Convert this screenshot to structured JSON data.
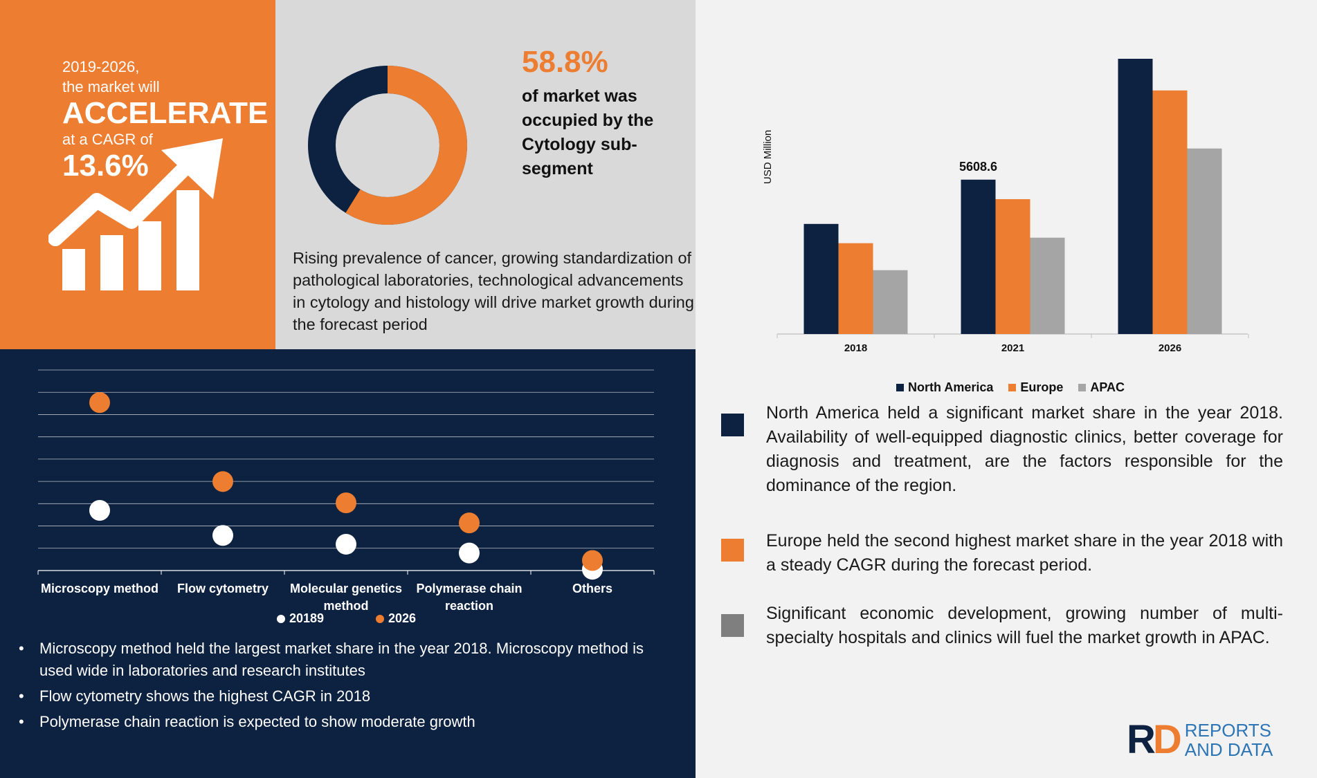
{
  "cagr": {
    "line1": "2019-2026,",
    "line2": "the market will",
    "headline": "ACCELERATE",
    "line3": "at a CAGR of",
    "value": "13.6%"
  },
  "donut": {
    "percent_label": "58.8%",
    "description": "of market was occupied by the Cytology sub-segment",
    "share": 0.588,
    "colors": {
      "segment": "#ed7d31",
      "rest": "#0d2240"
    }
  },
  "prevalence_text": "Rising prevalence of cancer, growing standardization of pathological laboratories, technological advancements in cytology and histology will drive market growth during the forecast period",
  "bullets": [
    "Microscopy method held the largest market share in the year 2018. Microscopy method is used wide in laboratories and research institutes",
    "Flow cytometry shows the highest CAGR in 2018",
    "Polymerase chain reaction is expected to show moderate growth"
  ],
  "regions": [
    {
      "color": "#0d2240",
      "text": "North America held a significant market share in the year 2018. Availability of well-equipped diagnostic clinics, better coverage for diagnosis and treatment, are the factors responsible for the dominance of the region."
    },
    {
      "color": "#ed7d31",
      "text": "Europe held the second highest market share in the year 2018 with a steady CAGR during the forecast period."
    },
    {
      "color": "#7f7f7f",
      "text": "Significant economic development, growing number of multi-specialty hospitals and clinics will fuel the market growth in APAC."
    }
  ],
  "logo": {
    "mark_r": "R",
    "mark_d": "D",
    "line1": "REPORTS",
    "line2": "AND DATA"
  },
  "colors": {
    "orange": "#ed7d31",
    "navy": "#0d2240",
    "grey": "#a5a5a5"
  },
  "chart_data": [
    {
      "type": "scatter",
      "title": "",
      "categories": [
        "Microscopy method",
        "Flow cytometry",
        "Molecular genetics method",
        "Polymerase chain reaction",
        "Others"
      ],
      "series": [
        {
          "name": "20189",
          "color": "#ffffff",
          "values": [
            2.4,
            1.4,
            1.05,
            0.7,
            0.05
          ]
        },
        {
          "name": "2026",
          "color": "#ed7d31",
          "values": [
            6.7,
            3.55,
            2.7,
            1.9,
            0.4
          ]
        }
      ],
      "ylim": [
        0,
        8
      ],
      "grid": true,
      "legend": "bottom"
    },
    {
      "type": "bar",
      "categories": [
        "2018",
        "2021",
        "2026"
      ],
      "series": [
        {
          "name": "North America",
          "color": "#0d2240",
          "values": [
            4000,
            5608.6,
            10000
          ]
        },
        {
          "name": "Europe",
          "color": "#ed7d31",
          "values": [
            3300,
            4900,
            8850
          ]
        },
        {
          "name": "APAC",
          "color": "#a5a5a5",
          "values": [
            2320,
            3500,
            6740
          ]
        }
      ],
      "data_labels": [
        {
          "series": 0,
          "category": 1,
          "text": "5608.6"
        }
      ],
      "xlabel": "",
      "ylabel": "USD Million",
      "ylim": [
        0,
        10000
      ],
      "grid": false,
      "legend": "bottom"
    }
  ]
}
